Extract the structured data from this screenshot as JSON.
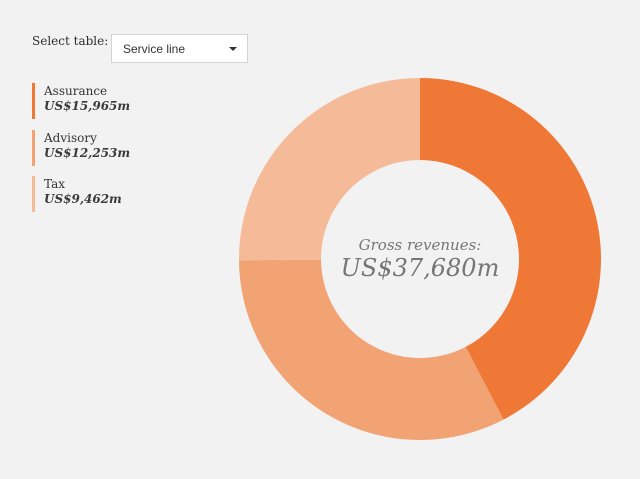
{
  "select": {
    "label": "Select table:",
    "value": "Service line"
  },
  "legend": [
    {
      "name": "Assurance",
      "value": "US$15,965m",
      "color": "#f07836"
    },
    {
      "name": "Advisory",
      "value": "US$12,253m",
      "color": "#f2a373"
    },
    {
      "name": "Tax",
      "value": "US$9,462m",
      "color": "#f5bb99"
    }
  ],
  "center": {
    "label": "Gross revenues:",
    "total": "US$37,680m"
  },
  "chart_data": {
    "type": "donut",
    "categories": [
      "Assurance",
      "Advisory",
      "Tax"
    ],
    "values": [
      15965,
      12253,
      9462
    ],
    "units": "US$m",
    "colors": [
      "#f07836",
      "#f2a373",
      "#f5bb99"
    ]
  }
}
